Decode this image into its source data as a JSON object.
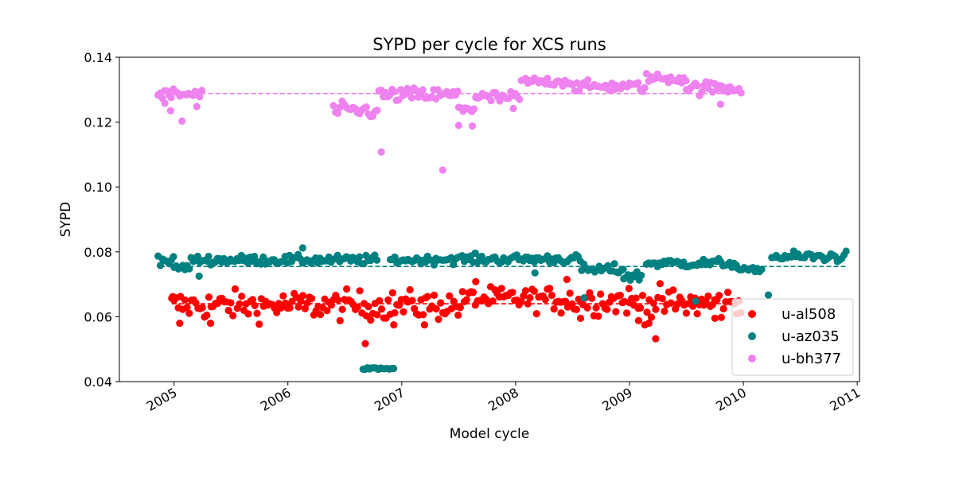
{
  "colors": {
    "u-al508": "#ff0000",
    "u-az035": "#008080",
    "u-bh377": "#ee82ee"
  },
  "chart_data": {
    "type": "scatter",
    "title": "SYPD per cycle for XCS runs",
    "xlabel": "Model cycle",
    "ylabel": "SYPD",
    "xlim": [
      2004.52,
      2011.02
    ],
    "ylim": [
      0.04,
      0.14
    ],
    "x_ticks": [
      2005,
      2006,
      2007,
      2008,
      2009,
      2010,
      2011
    ],
    "y_ticks": [
      0.04,
      0.06,
      0.08,
      0.1,
      0.12,
      0.14
    ],
    "y_tick_labels": [
      "0.04",
      "0.06",
      "0.08",
      "0.10",
      "0.12",
      "0.14"
    ],
    "legend_position": "lower right",
    "series": [
      {
        "name": "u-al508",
        "color": "#ff0000",
        "x_range": [
          2004.98,
          2009.98
        ],
        "mean": 0.064,
        "segments": [
          {
            "x0": 2004.98,
            "x1": 2007.55,
            "base": 0.0635,
            "jitter": 0.0022
          },
          {
            "x0": 2007.55,
            "x1": 2008.4,
            "base": 0.0655,
            "jitter": 0.0018
          },
          {
            "x0": 2008.4,
            "x1": 2009.0,
            "base": 0.065,
            "jitter": 0.0022
          },
          {
            "x0": 2009.0,
            "x1": 2009.98,
            "base": 0.064,
            "jitter": 0.0025
          }
        ],
        "outliers": [
          {
            "x": 2004.99,
            "y": 0.0662
          },
          {
            "x": 2005.05,
            "y": 0.058
          },
          {
            "x": 2005.32,
            "y": 0.058
          },
          {
            "x": 2006.68,
            "y": 0.0517
          },
          {
            "x": 2006.93,
            "y": 0.0575
          },
          {
            "x": 2007.2,
            "y": 0.0575
          },
          {
            "x": 2007.65,
            "y": 0.0708
          },
          {
            "x": 2008.45,
            "y": 0.0715
          },
          {
            "x": 2008.57,
            "y": 0.0595
          },
          {
            "x": 2009.08,
            "y": 0.0588
          },
          {
            "x": 2009.17,
            "y": 0.058
          },
          {
            "x": 2009.23,
            "y": 0.0532
          },
          {
            "x": 2009.55,
            "y": 0.0648
          },
          {
            "x": 2009.75,
            "y": 0.0595
          }
        ]
      },
      {
        "name": "u-az035",
        "color": "#008080",
        "mean": 0.0755,
        "segments": [
          {
            "x0": 2004.88,
            "x1": 2005.0,
            "base": 0.0772,
            "jitter": 0.0006
          },
          {
            "x0": 2005.0,
            "x1": 2005.15,
            "base": 0.0752,
            "jitter": 0.0005
          },
          {
            "x0": 2005.15,
            "x1": 2006.8,
            "base": 0.0775,
            "jitter": 0.0007
          },
          {
            "x0": 2006.9,
            "x1": 2007.3,
            "base": 0.0775,
            "jitter": 0.0006
          },
          {
            "x0": 2007.3,
            "x1": 2008.58,
            "base": 0.0778,
            "jitter": 0.0007
          },
          {
            "x0": 2008.58,
            "x1": 2008.95,
            "base": 0.0745,
            "jitter": 0.0008
          },
          {
            "x0": 2008.95,
            "x1": 2009.12,
            "base": 0.0725,
            "jitter": 0.0008
          },
          {
            "x0": 2009.15,
            "x1": 2009.95,
            "base": 0.0765,
            "jitter": 0.0007
          },
          {
            "x0": 2009.95,
            "x1": 2010.18,
            "base": 0.0745,
            "jitter": 0.0003
          },
          {
            "x0": 2010.25,
            "x1": 2010.92,
            "base": 0.0785,
            "jitter": 0.0008
          }
        ],
        "low_cluster": {
          "x0": 2006.66,
          "x1": 2006.93,
          "y": 0.044
        },
        "outliers": [
          {
            "x": 2004.86,
            "y": 0.0787
          },
          {
            "x": 2005.22,
            "y": 0.0725
          },
          {
            "x": 2006.13,
            "y": 0.0812
          },
          {
            "x": 2008.17,
            "y": 0.0735
          },
          {
            "x": 2008.6,
            "y": 0.0658
          },
          {
            "x": 2009.58,
            "y": 0.0648
          },
          {
            "x": 2010.22,
            "y": 0.0667
          }
        ]
      },
      {
        "name": "u-bh377",
        "color": "#ee82ee",
        "mean": 0.1288,
        "segments": [
          {
            "x0": 2004.86,
            "x1": 2005.25,
            "base": 0.1285,
            "jitter": 0.0009
          },
          {
            "x0": 2006.4,
            "x1": 2006.8,
            "base": 0.1235,
            "jitter": 0.0012
          },
          {
            "x0": 2006.8,
            "x1": 2007.5,
            "base": 0.1283,
            "jitter": 0.0011
          },
          {
            "x0": 2007.5,
            "x1": 2007.65,
            "base": 0.1245,
            "jitter": 0.0013
          },
          {
            "x0": 2007.65,
            "x1": 2008.05,
            "base": 0.1275,
            "jitter": 0.001
          },
          {
            "x0": 2008.05,
            "x1": 2008.5,
            "base": 0.1325,
            "jitter": 0.0007
          },
          {
            "x0": 2008.5,
            "x1": 2009.15,
            "base": 0.131,
            "jitter": 0.0008
          },
          {
            "x0": 2009.15,
            "x1": 2009.5,
            "base": 0.1335,
            "jitter": 0.0008
          },
          {
            "x0": 2009.5,
            "x1": 2009.98,
            "base": 0.1305,
            "jitter": 0.001
          }
        ],
        "outliers": [
          {
            "x": 2004.92,
            "y": 0.1258
          },
          {
            "x": 2004.97,
            "y": 0.1235
          },
          {
            "x": 2005.07,
            "y": 0.1203
          },
          {
            "x": 2005.2,
            "y": 0.1248
          },
          {
            "x": 2006.82,
            "y": 0.1108
          },
          {
            "x": 2007.36,
            "y": 0.1052
          },
          {
            "x": 2007.5,
            "y": 0.119
          },
          {
            "x": 2007.62,
            "y": 0.1188
          },
          {
            "x": 2007.98,
            "y": 0.1242
          },
          {
            "x": 2009.8,
            "y": 0.1255
          }
        ]
      }
    ]
  }
}
